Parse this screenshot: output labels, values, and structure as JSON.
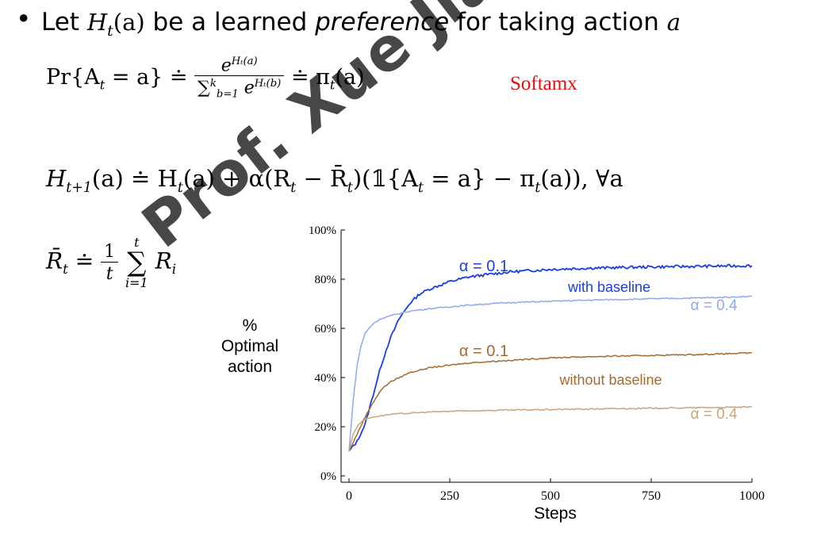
{
  "bullet_text": {
    "prefix": "Let ",
    "h_symbol": "H",
    "h_sub": "t",
    "h_arg": "(a)",
    "middle": " be a learned ",
    "emph": "preference",
    "suffix": " for taking action ",
    "action_var": "a"
  },
  "eq_softmax": {
    "lhs": "Pr{A",
    "lhs_sub": "t",
    "lhs_rest": " = a} ≐",
    "num": "e",
    "num_sup": "H_t(a)",
    "den": "∑",
    "den_sup": "k",
    "den_sub": "b=1",
    "den_rest": "e",
    "den_exp": "H_t(b)",
    "rhs": "≐ π",
    "rhs_sub": "t",
    "rhs_rest": "(a)"
  },
  "annotation": "Softamx",
  "eq_update": {
    "part1": "H",
    "part1_sub": "t+1",
    "part2": "(a) ≐ H",
    "part2_sub": "t",
    "part3": "(a) + α(R",
    "part3_sub": "t",
    "part4": " − R̄",
    "part4_sub": "t",
    "part5": ")(𝟙{A",
    "part5_sub": "t",
    "part6": " = a} − π",
    "part6_sub": "t",
    "part7": "(a)),     ∀a"
  },
  "eq_mean": {
    "lhs": "R̄",
    "lhs_sub": "t",
    "eq": " ≐ ",
    "frac_num": "1",
    "frac_den": "t",
    "sum_sup": "t",
    "sum": "∑",
    "sum_sub": "i=1",
    "term": "R",
    "term_sub": "i"
  },
  "axis": {
    "ylabel_lines": [
      "%",
      "Optimal",
      "action"
    ],
    "xlabel": "Steps"
  },
  "watermark": "Prof. Xue Jianru",
  "colors": {
    "dark_blue": "#1a3fe0",
    "light_blue": "#8fa8ef",
    "dark_brown": "#a5692e",
    "light_brown": "#c9a47f",
    "annotation_red": "#e01010"
  },
  "chart_data": {
    "type": "line",
    "xlabel": "Steps",
    "ylabel": "% Optimal action",
    "xlim": [
      0,
      1000
    ],
    "ylim": [
      0,
      100
    ],
    "xticks": [
      0,
      250,
      500,
      750,
      1000
    ],
    "yticks": [
      0,
      20,
      40,
      60,
      80,
      100
    ],
    "xtick_labels": [
      "0",
      "250",
      "500",
      "750",
      "1000"
    ],
    "ytick_labels": [
      "0%",
      "20%",
      "40%",
      "60%",
      "80%",
      "100%"
    ],
    "series": [
      {
        "name": "α = 0.1",
        "color": "#1a3fe0",
        "x": [
          0,
          20,
          40,
          60,
          80,
          100,
          125,
          150,
          175,
          200,
          250,
          300,
          400,
          500,
          600,
          750,
          900,
          1000
        ],
        "y": [
          10,
          14,
          21,
          33,
          45,
          55,
          64,
          70,
          74,
          76,
          79,
          81,
          83,
          84,
          84.5,
          85,
          85.3,
          85.5
        ]
      },
      {
        "name": "α = 0.4",
        "color": "#8fa8ef",
        "x": [
          0,
          10,
          20,
          30,
          40,
          60,
          80,
          100,
          150,
          200,
          300,
          400,
          500,
          600,
          750,
          900,
          1000
        ],
        "y": [
          10,
          30,
          45,
          53,
          58,
          62,
          64,
          65,
          67,
          68,
          69.5,
          70.5,
          71,
          71.5,
          72,
          72.5,
          73
        ]
      },
      {
        "name": "α = 0.1",
        "color": "#a5692e",
        "x": [
          0,
          20,
          40,
          60,
          80,
          100,
          150,
          200,
          250,
          300,
          400,
          500,
          600,
          750,
          900,
          1000
        ],
        "y": [
          10,
          17,
          24,
          30,
          35,
          38,
          42,
          44,
          45,
          46,
          47,
          48,
          48.5,
          49,
          49.5,
          50
        ]
      },
      {
        "name": "α = 0.4",
        "color": "#c9a47f",
        "x": [
          0,
          10,
          20,
          30,
          40,
          60,
          100,
          200,
          300,
          500,
          750,
          1000
        ],
        "y": [
          10,
          17,
          20,
          22,
          23,
          24,
          25,
          26,
          26.5,
          27,
          27.5,
          28
        ]
      }
    ],
    "annotations": [
      {
        "text": "α = 0.1",
        "color": "#1a3fe0"
      },
      {
        "text": "with baseline",
        "color": "#1a3fe0"
      },
      {
        "text": "α = 0.4",
        "color": "#8fa8ef"
      },
      {
        "text": "α = 0.1",
        "color": "#a5692e"
      },
      {
        "text": "without baseline",
        "color": "#a5692e"
      },
      {
        "text": "α = 0.4",
        "color": "#c9a47f"
      }
    ]
  }
}
